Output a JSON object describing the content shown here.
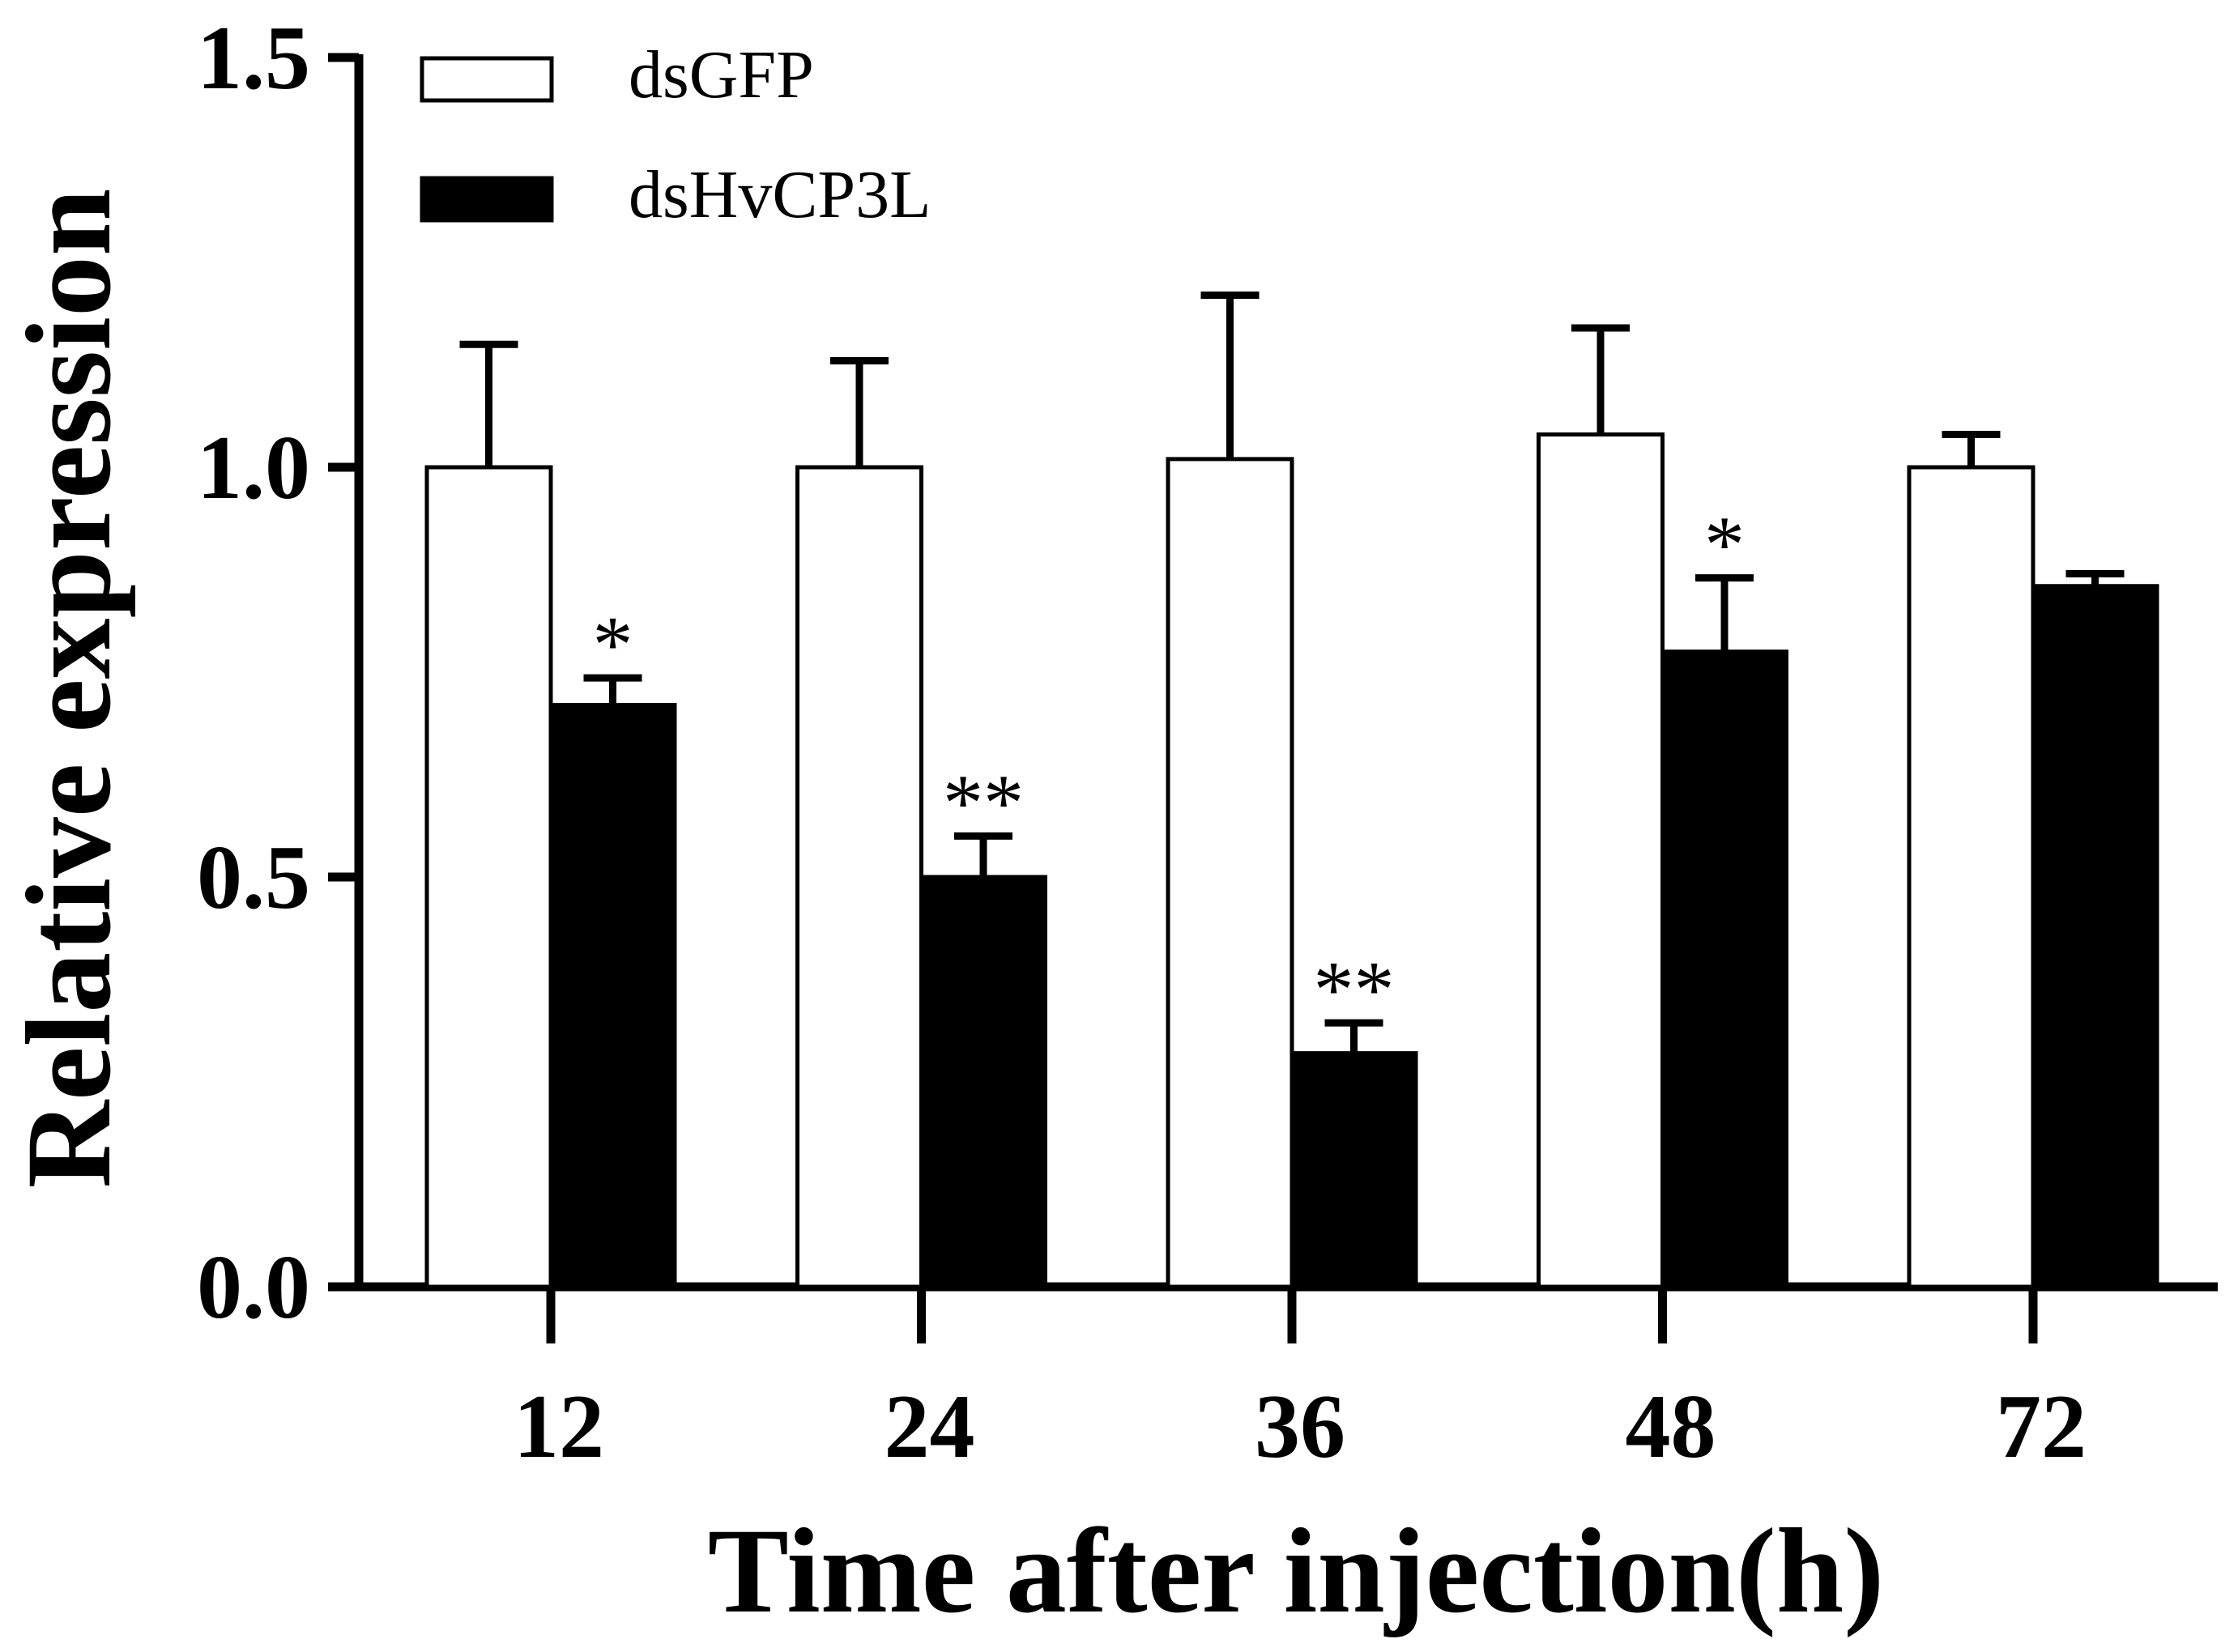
{
  "chart_data": {
    "type": "bar",
    "title": "",
    "xlabel": "Time after injection(h)",
    "ylabel": "Relative expression",
    "categories": [
      "12",
      "24",
      "36",
      "48",
      "72"
    ],
    "ylim": [
      0,
      1.5
    ],
    "yticks": [
      "0.0",
      "0.5",
      "1.0",
      "1.5"
    ],
    "grid": false,
    "legend_position": "top-left",
    "series": [
      {
        "name": "dsGFP",
        "fill": "#ffffff",
        "stroke": "#000000",
        "values": [
          1.0,
          1.0,
          1.01,
          1.04,
          1.0
        ],
        "errors": [
          0.15,
          0.13,
          0.2,
          0.13,
          0.04
        ],
        "significance": [
          "",
          "",
          "",
          "",
          ""
        ]
      },
      {
        "name": "dsHvCP3L",
        "fill": "#000000",
        "stroke": "#000000",
        "values": [
          0.71,
          0.5,
          0.285,
          0.775,
          0.855
        ],
        "errors": [
          0.033,
          0.05,
          0.037,
          0.09,
          0.015
        ],
        "significance": [
          "*",
          "**",
          "**",
          "*",
          ""
        ]
      }
    ]
  }
}
